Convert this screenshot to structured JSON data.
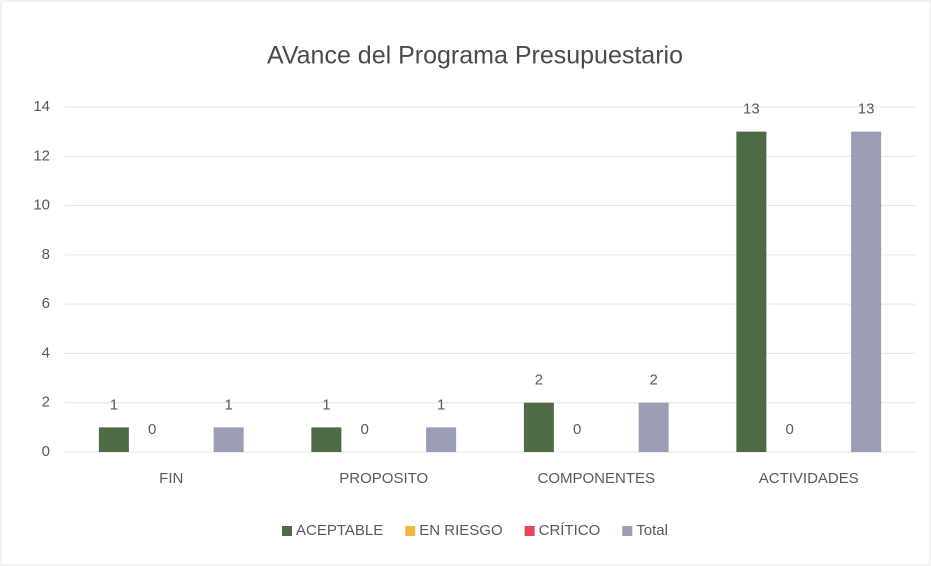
{
  "chart_data": {
    "type": "bar",
    "title": "AVance del Programa Presupuestario",
    "categories": [
      "FIN",
      "PROPOSITO",
      "COMPONENTES",
      "ACTIVIDADES"
    ],
    "series": [
      {
        "name": "ACEPTABLE",
        "color": "#4f6b45",
        "values": [
          1,
          1,
          2,
          13
        ]
      },
      {
        "name": "EN RIESGO",
        "color": "#f2b53d",
        "values": [
          0,
          0,
          0,
          0
        ]
      },
      {
        "name": "CRÍTICO",
        "color": "#e8445a",
        "values": [
          null,
          null,
          null,
          null
        ]
      },
      {
        "name": "Total",
        "color": "#9b9db4",
        "values": [
          1,
          1,
          2,
          13
        ]
      }
    ],
    "ylim": [
      0,
      14
    ],
    "yticks": [
      0,
      2,
      4,
      6,
      8,
      10,
      12,
      14
    ],
    "grid": true,
    "legend": "bottom"
  }
}
